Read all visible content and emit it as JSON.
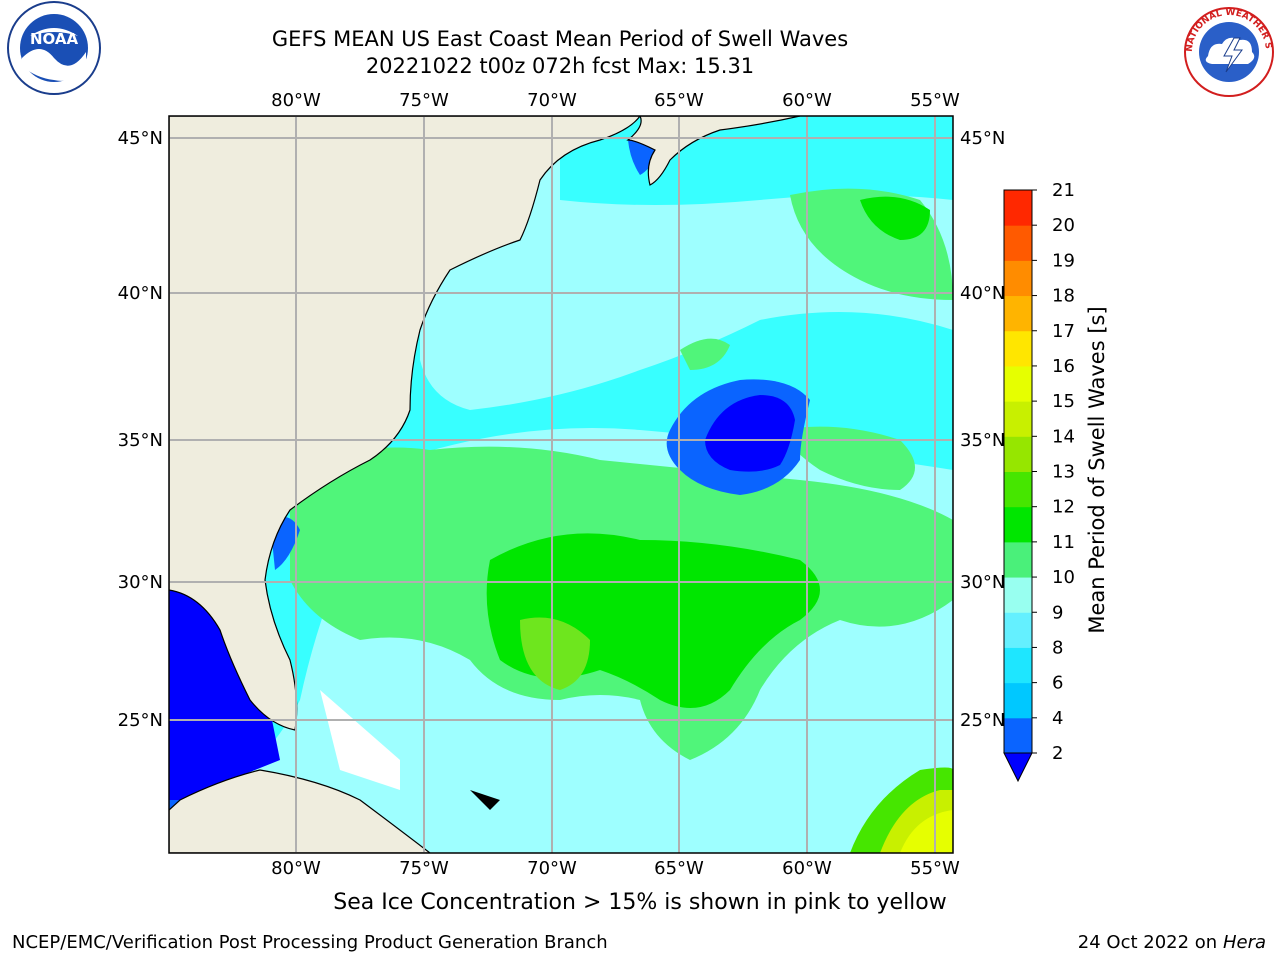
{
  "title_line1": "GEFS MEAN US East Coast Mean Period of Swell Waves",
  "title_line2": "20221022 t00z 072h fcst   Max: 15.31",
  "lon_labels": [
    "80°W",
    "75°W",
    "70°W",
    "65°W",
    "60°W",
    "55°W"
  ],
  "lat_labels": [
    "45°N",
    "40°N",
    "35°N",
    "30°N",
    "25°N"
  ],
  "colorbar": {
    "label": "Mean Period of Swell Waves [s]",
    "ticks": [
      "2",
      "4",
      "6",
      "8",
      "9",
      "10",
      "11",
      "12",
      "13",
      "14",
      "15",
      "16",
      "17",
      "18",
      "19",
      "20",
      "21"
    ],
    "colors": [
      "#0a64ff",
      "#00c8ff",
      "#1ee6ff",
      "#64f0ff",
      "#98fff0",
      "#4af07a",
      "#00e600",
      "#46e600",
      "#96e600",
      "#c8f000",
      "#e6ff00",
      "#ffe600",
      "#ffb400",
      "#ff8c00",
      "#ff5a00",
      "#ff2800",
      "#ff0000"
    ],
    "under_color": "#0000ff"
  },
  "note": "Sea Ice Concentration > 15% is shown in pink to yellow",
  "footer_left": "NCEP/EMC/Verification Post Processing Product Generation Branch",
  "footer_date": "24 Oct 2022 on",
  "footer_machine": "Hera",
  "logos": {
    "left": "NOAA",
    "right": "NATIONAL WEATHER SERVICE"
  }
}
